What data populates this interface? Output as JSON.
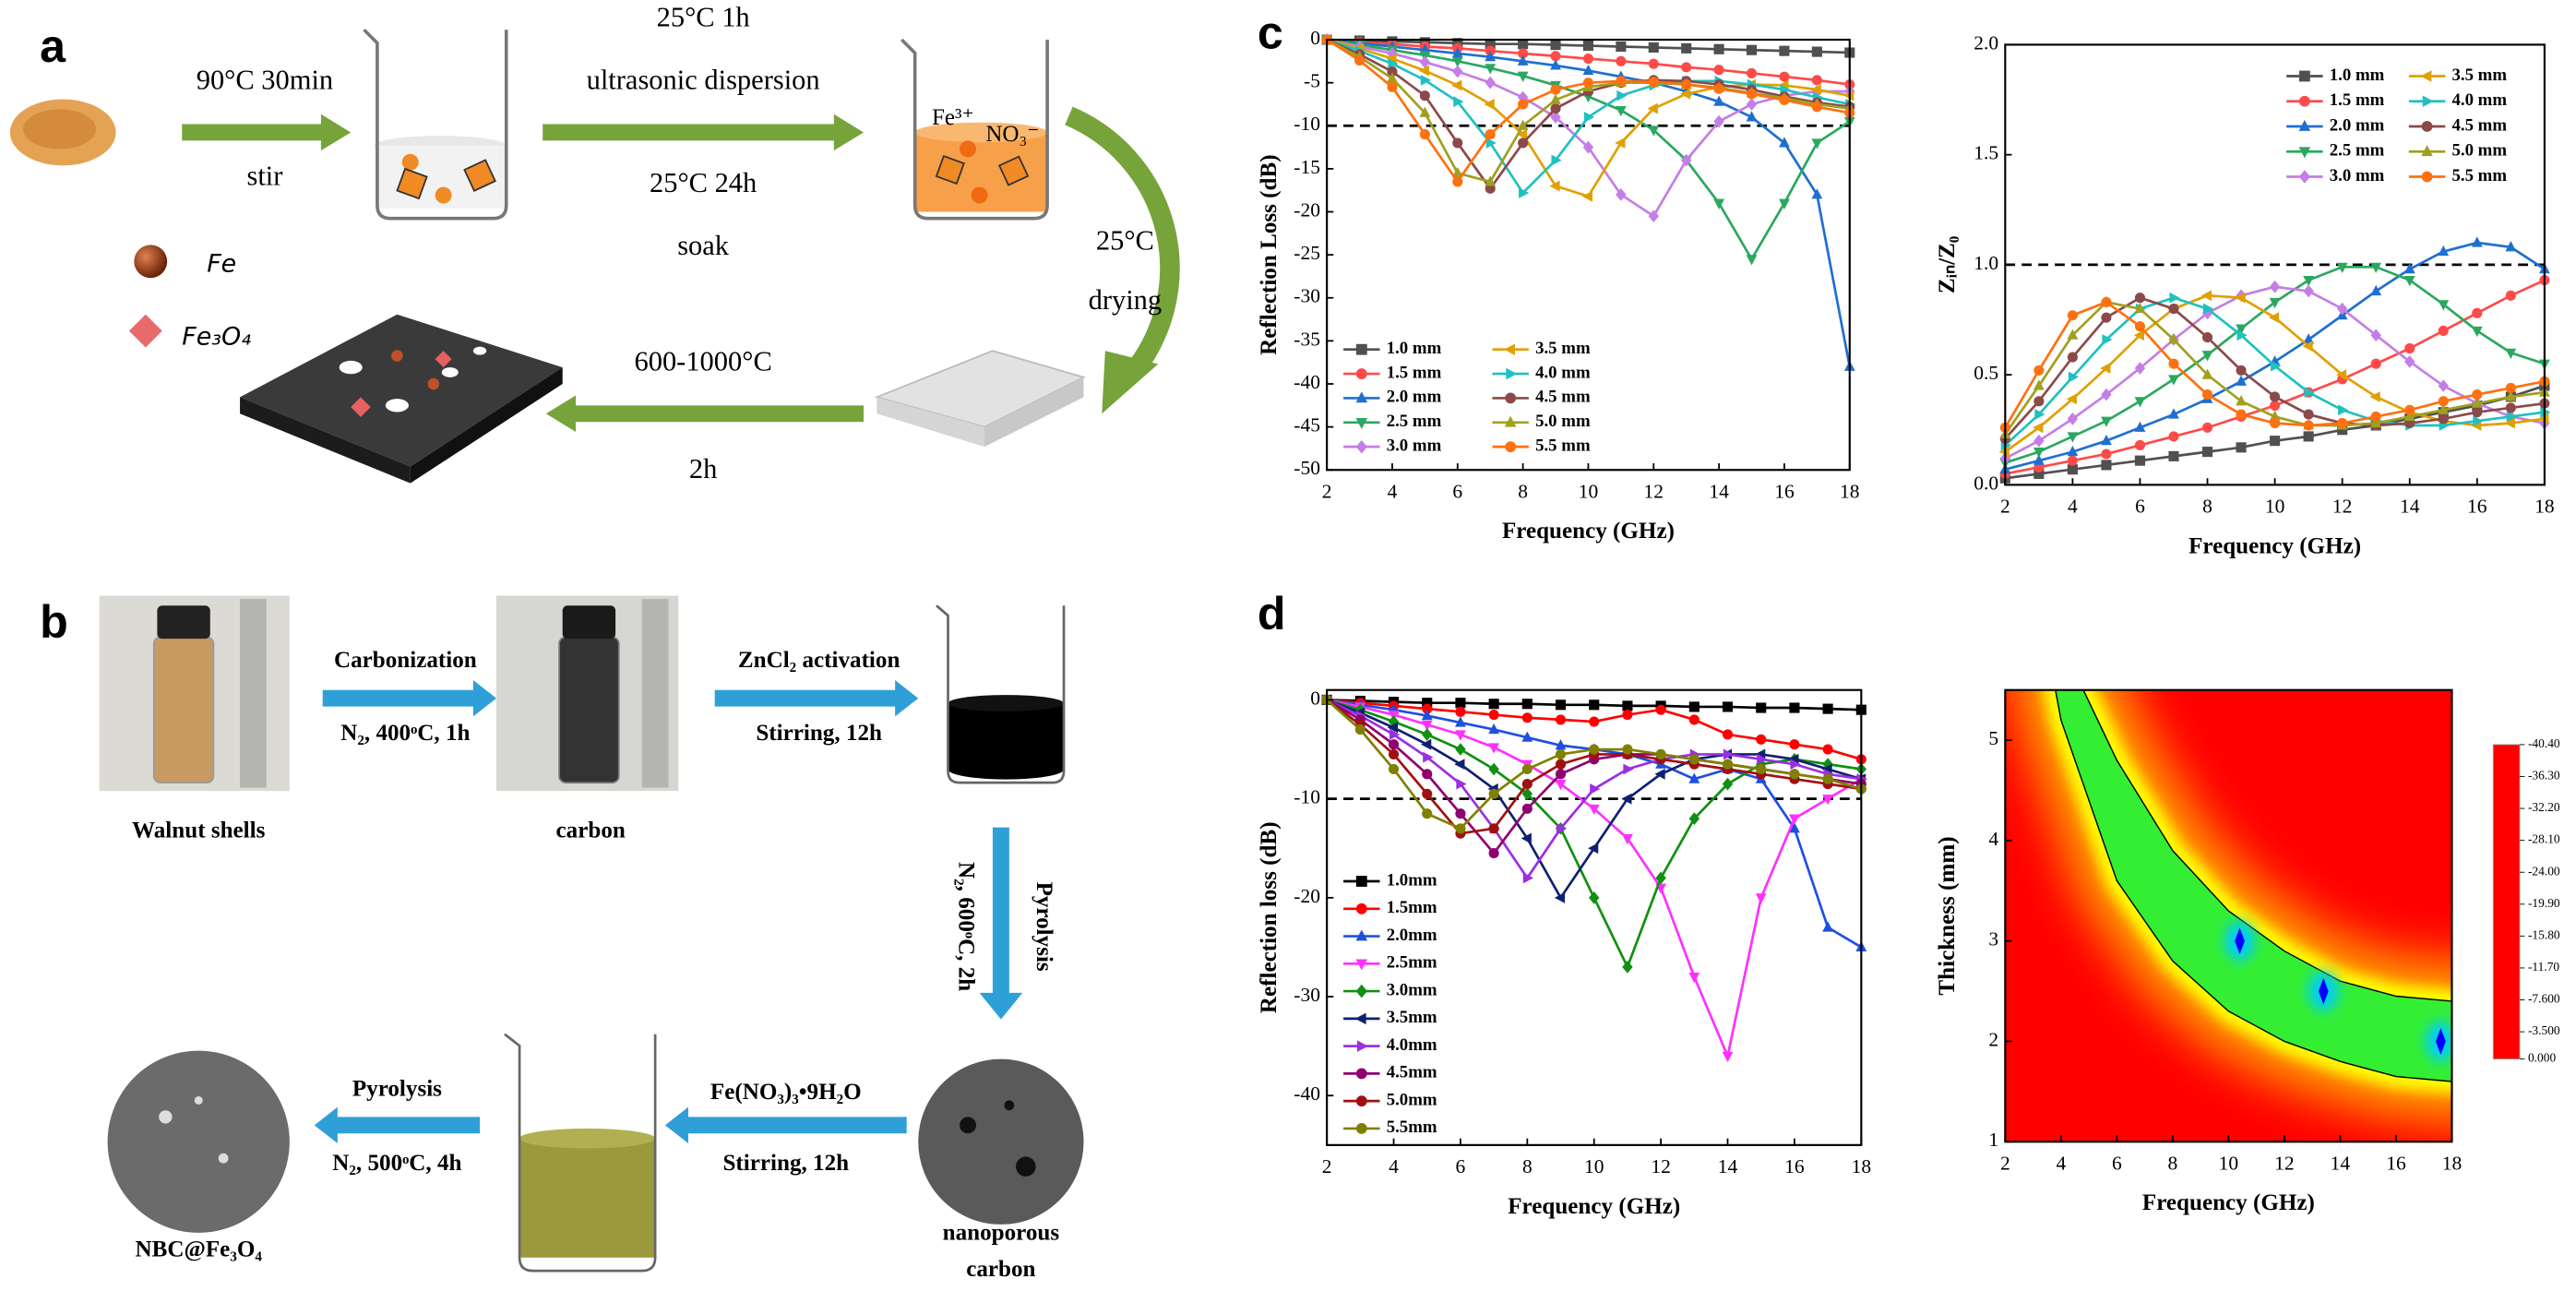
{
  "panel_labels": [
    "a",
    "b",
    "c",
    "d"
  ],
  "scheme_a": {
    "stir_conditions": "90°C 30min",
    "stir": "stir",
    "dispersion_conditions": "25°C 1h",
    "dispersion": "ultrasonic dispersion",
    "soak_conditions": "25°C 24h",
    "soak": "soak",
    "ions": [
      "Fe³⁺",
      "NO₃⁻"
    ],
    "drying_conditions": "25°C",
    "drying": "drying",
    "annealing_conditions": "600-1000°C",
    "annealing_time": "2h",
    "legend": [
      "Fe",
      "Fe₃O₄"
    ]
  },
  "scheme_b": {
    "carbonization": "Carbonization",
    "carbonization_conditions": "N₂, 400ᵒC, 1h",
    "activation": "ZnCl₂ activation",
    "activation_conditions": "Stirring, 12h",
    "walnut_shells": "Walnut shells",
    "carbon": "carbon",
    "pyrolysis_1": "Pyrolysis",
    "pyrolysis_1_conditions": "N₂, 600ᵒC, 2h",
    "nanoporous_carbon": [
      "nanoporous",
      "carbon"
    ],
    "impregnation": "Fe(NO₃)₃•9H₂O",
    "impregnation_conditions": "Stirring, 12h",
    "pyrolysis_2": "Pyrolysis",
    "pyrolysis_2_conditions": "N₂, 500ᵒC, 4h",
    "product": "NBC@Fe₃O₄"
  },
  "chart_data": [
    {
      "type": "line",
      "xlabel": "Frequency (GHz)",
      "ylabel": "Reflection Loss (dB)",
      "x": [
        2,
        3,
        4,
        5,
        6,
        7,
        8,
        9,
        10,
        11,
        12,
        13,
        14,
        15,
        16,
        17,
        18
      ],
      "xlim": [
        2,
        18
      ],
      "xticks": [
        2,
        4,
        6,
        8,
        10,
        12,
        14,
        16,
        18
      ],
      "ylim": [
        -50,
        0
      ],
      "yticks": [
        0,
        -5,
        -10,
        -15,
        -20,
        -25,
        -30,
        -35,
        -40,
        -45,
        -50
      ],
      "reference_line": -10,
      "legend": "lower left",
      "legend_columns": 2,
      "series": [
        {
          "name": "1.0 mm",
          "color": "#505050",
          "marker": "square",
          "values": [
            0,
            -0.1,
            -0.2,
            -0.3,
            -0.4,
            -0.5,
            -0.5,
            -0.6,
            -0.7,
            -0.8,
            -0.9,
            -1.0,
            -1.1,
            -1.2,
            -1.3,
            -1.4,
            -1.5
          ]
        },
        {
          "name": "1.5 mm",
          "color": "#ff4a4a",
          "marker": "circle",
          "values": [
            0,
            -0.3,
            -0.5,
            -0.8,
            -1.0,
            -1.3,
            -1.6,
            -1.9,
            -2.2,
            -2.5,
            -2.8,
            -3.2,
            -3.5,
            -3.9,
            -4.3,
            -4.7,
            -5.2
          ]
        },
        {
          "name": "2.0 mm",
          "color": "#1f6fd0",
          "marker": "triangle-up",
          "values": [
            0,
            -0.4,
            -0.8,
            -1.2,
            -1.6,
            -2.0,
            -2.5,
            -3.0,
            -3.6,
            -4.3,
            -5.0,
            -6.0,
            -7.2,
            -9.0,
            -12,
            -18,
            -38
          ]
        },
        {
          "name": "2.5 mm",
          "color": "#2aa860",
          "marker": "triangle-down",
          "values": [
            0,
            -0.6,
            -1.2,
            -1.8,
            -2.5,
            -3.3,
            -4.2,
            -5.3,
            -6.6,
            -8.2,
            -10.5,
            -14,
            -19,
            -25.5,
            -19,
            -12,
            -9.5
          ]
        },
        {
          "name": "3.0 mm",
          "color": "#c47ee6",
          "marker": "diamond",
          "values": [
            0,
            -0.8,
            -1.6,
            -2.6,
            -3.7,
            -5.0,
            -6.7,
            -9,
            -12.5,
            -18,
            -20.5,
            -14,
            -9.5,
            -7.5,
            -6.5,
            -6,
            -6
          ]
        },
        {
          "name": "3.5 mm",
          "color": "#e0a000",
          "marker": "triangle-left",
          "values": [
            0,
            -1.0,
            -2.2,
            -3.6,
            -5.3,
            -7.5,
            -11,
            -17,
            -18.2,
            -12,
            -8,
            -6.3,
            -5.5,
            -5.2,
            -5.3,
            -5.8,
            -6.5
          ]
        },
        {
          "name": "4.0 mm",
          "color": "#20c0c0",
          "marker": "triangle-right",
          "values": [
            0,
            -1.3,
            -2.8,
            -4.7,
            -7.2,
            -12,
            -17.8,
            -14,
            -9,
            -6.5,
            -5.3,
            -4.8,
            -4.8,
            -5.2,
            -5.8,
            -6.7,
            -7.5
          ]
        },
        {
          "name": "4.5 mm",
          "color": "#8b4a4a",
          "marker": "circle",
          "values": [
            0,
            -1.7,
            -3.7,
            -6.5,
            -12,
            -17.3,
            -12,
            -8,
            -6,
            -5,
            -4.7,
            -4.8,
            -5.2,
            -5.8,
            -6.6,
            -7.3,
            -7.8
          ]
        },
        {
          "name": "5.0 mm",
          "color": "#a0a020",
          "marker": "triangle-up",
          "values": [
            0,
            -2.0,
            -4.5,
            -8.5,
            -15.5,
            -16.5,
            -10,
            -7,
            -5.5,
            -5,
            -5,
            -5.2,
            -5.6,
            -6.2,
            -6.8,
            -7.5,
            -8
          ]
        },
        {
          "name": "5.5 mm",
          "color": "#ff7010",
          "marker": "circle",
          "values": [
            0,
            -2.4,
            -5.5,
            -11,
            -16.5,
            -11,
            -7.5,
            -5.8,
            -5,
            -4.8,
            -4.9,
            -5.2,
            -5.7,
            -6.3,
            -7,
            -7.8,
            -8.5
          ]
        }
      ]
    },
    {
      "type": "line",
      "xlabel": "Frequency (GHz)",
      "ylabel": "Zᵢₙ/Z₀",
      "x": [
        2,
        3,
        4,
        5,
        6,
        7,
        8,
        9,
        10,
        11,
        12,
        13,
        14,
        15,
        16,
        17,
        18
      ],
      "xlim": [
        2,
        18
      ],
      "xticks": [
        2,
        4,
        6,
        8,
        10,
        12,
        14,
        16,
        18
      ],
      "ylim": [
        0,
        2
      ],
      "yticks": [
        {
          "value": 0,
          "label": "0.0"
        },
        0.5,
        {
          "value": 1,
          "label": "1.0"
        },
        1.5,
        {
          "value": 2,
          "label": "2.0"
        }
      ],
      "reference_line": 1,
      "legend": "upper right",
      "legend_columns": 2,
      "series": [
        {
          "name": "1.0 mm",
          "color": "#505050",
          "marker": "square",
          "values": [
            0.03,
            0.05,
            0.07,
            0.09,
            0.11,
            0.13,
            0.15,
            0.17,
            0.2,
            0.22,
            0.25,
            0.27,
            0.3,
            0.33,
            0.36,
            0.4,
            0.45
          ]
        },
        {
          "name": "1.5 mm",
          "color": "#ff4a4a",
          "marker": "circle",
          "values": [
            0.05,
            0.08,
            0.11,
            0.14,
            0.18,
            0.22,
            0.26,
            0.31,
            0.36,
            0.42,
            0.48,
            0.55,
            0.62,
            0.7,
            0.78,
            0.86,
            0.93
          ]
        },
        {
          "name": "2.0 mm",
          "color": "#1f6fd0",
          "marker": "triangle-up",
          "values": [
            0.07,
            0.11,
            0.15,
            0.2,
            0.26,
            0.32,
            0.39,
            0.47,
            0.56,
            0.66,
            0.77,
            0.88,
            0.98,
            1.06,
            1.1,
            1.08,
            0.98
          ]
        },
        {
          "name": "2.5 mm",
          "color": "#2aa860",
          "marker": "triangle-down",
          "values": [
            0.1,
            0.15,
            0.22,
            0.29,
            0.38,
            0.48,
            0.59,
            0.71,
            0.83,
            0.93,
            0.99,
            0.99,
            0.93,
            0.82,
            0.7,
            0.6,
            0.55
          ]
        },
        {
          "name": "3.0 mm",
          "color": "#c47ee6",
          "marker": "diamond",
          "values": [
            0.12,
            0.2,
            0.3,
            0.41,
            0.53,
            0.66,
            0.78,
            0.86,
            0.9,
            0.88,
            0.8,
            0.68,
            0.56,
            0.45,
            0.37,
            0.31,
            0.28
          ]
        },
        {
          "name": "3.5 mm",
          "color": "#e0a000",
          "marker": "triangle-left",
          "values": [
            0.15,
            0.26,
            0.39,
            0.53,
            0.68,
            0.8,
            0.86,
            0.85,
            0.76,
            0.63,
            0.5,
            0.4,
            0.33,
            0.29,
            0.27,
            0.28,
            0.3
          ]
        },
        {
          "name": "4.0 mm",
          "color": "#20c0c0",
          "marker": "triangle-right",
          "values": [
            0.18,
            0.32,
            0.49,
            0.66,
            0.8,
            0.85,
            0.8,
            0.68,
            0.54,
            0.42,
            0.34,
            0.29,
            0.27,
            0.27,
            0.29,
            0.31,
            0.33
          ]
        },
        {
          "name": "4.5 mm",
          "color": "#8b4a4a",
          "marker": "circle",
          "values": [
            0.21,
            0.38,
            0.58,
            0.76,
            0.85,
            0.8,
            0.67,
            0.52,
            0.4,
            0.32,
            0.28,
            0.27,
            0.28,
            0.3,
            0.33,
            0.35,
            0.37
          ]
        },
        {
          "name": "5.0 mm",
          "color": "#a0a020",
          "marker": "triangle-up",
          "values": [
            0.23,
            0.45,
            0.68,
            0.83,
            0.8,
            0.66,
            0.5,
            0.38,
            0.31,
            0.27,
            0.27,
            0.28,
            0.31,
            0.34,
            0.37,
            0.4,
            0.42
          ]
        },
        {
          "name": "5.5 mm",
          "color": "#ff7010",
          "marker": "circle",
          "values": [
            0.26,
            0.52,
            0.77,
            0.83,
            0.72,
            0.55,
            0.41,
            0.32,
            0.28,
            0.27,
            0.28,
            0.31,
            0.34,
            0.38,
            0.41,
            0.44,
            0.47
          ]
        }
      ]
    },
    {
      "type": "line",
      "xlabel": "Frequency (GHz)",
      "ylabel": "Reflection loss (dB)",
      "x": [
        2,
        3,
        4,
        5,
        6,
        7,
        8,
        9,
        10,
        11,
        12,
        13,
        14,
        15,
        16,
        17,
        18
      ],
      "xlim": [
        2,
        18
      ],
      "xticks": [
        2,
        4,
        6,
        8,
        10,
        12,
        14,
        16,
        18
      ],
      "ylim": [
        -45,
        1
      ],
      "yticks": [
        0,
        -10,
        -20,
        -30,
        -40
      ],
      "reference_line": -10,
      "legend": "lower left",
      "legend_columns": 1,
      "series": [
        {
          "name": "1.0mm",
          "color": "#000000",
          "marker": "square",
          "values": [
            0,
            -0.1,
            -0.2,
            -0.3,
            -0.3,
            -0.4,
            -0.4,
            -0.5,
            -0.5,
            -0.6,
            -0.6,
            -0.7,
            -0.7,
            -0.8,
            -0.8,
            -0.9,
            -1
          ]
        },
        {
          "name": "1.5mm",
          "color": "#ff0000",
          "marker": "circle",
          "values": [
            0,
            -0.3,
            -0.6,
            -0.9,
            -1.2,
            -1.5,
            -1.8,
            -2,
            -2.2,
            -1.5,
            -1,
            -2,
            -3.5,
            -4,
            -4.5,
            -5,
            -6
          ]
        },
        {
          "name": "2.0mm",
          "color": "#1f4fe0",
          "marker": "triangle-up",
          "values": [
            0,
            -0.5,
            -1,
            -1.6,
            -2.3,
            -3,
            -3.8,
            -4.6,
            -5,
            -5.5,
            -6.5,
            -8,
            -7,
            -8,
            -13,
            -23,
            -25
          ]
        },
        {
          "name": "2.5mm",
          "color": "#ff30ff",
          "marker": "triangle-down",
          "values": [
            0,
            -0.7,
            -1.5,
            -2.5,
            -3.5,
            -4.8,
            -6.5,
            -8.5,
            -11,
            -14,
            -19,
            -28,
            -36,
            -20,
            -12,
            -10,
            -8
          ]
        },
        {
          "name": "3.0mm",
          "color": "#109010",
          "marker": "diamond",
          "values": [
            0,
            -1,
            -2.2,
            -3.5,
            -5,
            -7,
            -9.5,
            -13,
            -20,
            -27,
            -18,
            -12,
            -8.5,
            -6.5,
            -6,
            -6.5,
            -7
          ]
        },
        {
          "name": "3.5mm",
          "color": "#102070",
          "marker": "triangle-left",
          "values": [
            0,
            -1.3,
            -2.8,
            -4.5,
            -6.5,
            -9,
            -14,
            -20,
            -15,
            -10,
            -7.5,
            -6,
            -5.5,
            -5.5,
            -6,
            -7,
            -8
          ]
        },
        {
          "name": "4.0mm",
          "color": "#9a30e0",
          "marker": "triangle-right",
          "values": [
            0,
            -1.6,
            -3.5,
            -5.8,
            -8.5,
            -13,
            -18,
            -13,
            -9,
            -7,
            -6,
            -5.5,
            -5.5,
            -6,
            -6.5,
            -7.5,
            -8
          ]
        },
        {
          "name": "4.5mm",
          "color": "#900070",
          "marker": "circle",
          "values": [
            0,
            -2,
            -4.5,
            -7.5,
            -11.5,
            -15.5,
            -11,
            -7.5,
            -6,
            -5.5,
            -5.5,
            -6,
            -6.5,
            -7,
            -7.5,
            -8,
            -8.5
          ]
        },
        {
          "name": "5.0mm",
          "color": "#a01010",
          "marker": "circle",
          "values": [
            0,
            -2.5,
            -5.5,
            -9.5,
            -13.5,
            -13,
            -8.5,
            -6.5,
            -5.5,
            -5.5,
            -6,
            -6.5,
            -7,
            -7.5,
            -8,
            -8.5,
            -9
          ]
        },
        {
          "name": "5.5mm",
          "color": "#808000",
          "marker": "circle",
          "values": [
            0,
            -3,
            -7,
            -11.5,
            -13,
            -9.5,
            -7,
            -5.5,
            -5,
            -5,
            -5.5,
            -6,
            -6.5,
            -7,
            -7.5,
            -8,
            -9
          ]
        }
      ]
    },
    {
      "type": "contour",
      "xlabel": "Frequency (GHz)",
      "ylabel": "Thickness (mm)",
      "xlim": [
        2,
        18
      ],
      "xticks": [
        2,
        4,
        6,
        8,
        10,
        12,
        14,
        16,
        18
      ],
      "ylim": [
        1,
        5.5
      ],
      "yticks": [
        1,
        2,
        3,
        4,
        5
      ],
      "clim": [
        -40.4,
        0
      ],
      "colorbar_ticks": [
        {
          "value": -40.4,
          "label": "-40.40"
        },
        {
          "value": -36.3,
          "label": "-36.30"
        },
        {
          "value": -32.2,
          "label": "-32.20"
        },
        {
          "value": -28.1,
          "label": "-28.10"
        },
        {
          "value": -24,
          "label": "-24.00"
        },
        {
          "value": -19.9,
          "label": "-19.90"
        },
        {
          "value": -15.8,
          "label": "-15.80"
        },
        {
          "value": -11.7,
          "label": "-11.70"
        },
        {
          "value": -7.6,
          "label": "-7.600"
        },
        {
          "value": -3.5,
          "label": "-3.500"
        },
        {
          "value": 0,
          "label": "0.000"
        }
      ],
      "colormap": [
        "#ff0000",
        "#ff9a00",
        "#ffff00",
        "#33ee33",
        "#00ccff",
        "#0000ff"
      ],
      "contours": [
        {
          "x": [
            4.8,
            6,
            8,
            10,
            12,
            14,
            16,
            18
          ],
          "y": [
            5.5,
            4.8,
            3.9,
            3.3,
            2.9,
            2.6,
            2.45,
            2.4
          ]
        },
        {
          "x": [
            3.8,
            4,
            6,
            8,
            10,
            12,
            14,
            16,
            18
          ],
          "y": [
            5.5,
            5.2,
            3.6,
            2.8,
            2.3,
            2.0,
            1.8,
            1.65,
            1.6
          ]
        }
      ],
      "minima": {
        "x": [
          10.4,
          13.4,
          17.6
        ],
        "y": [
          3.0,
          2.5,
          2.0
        ]
      }
    }
  ]
}
